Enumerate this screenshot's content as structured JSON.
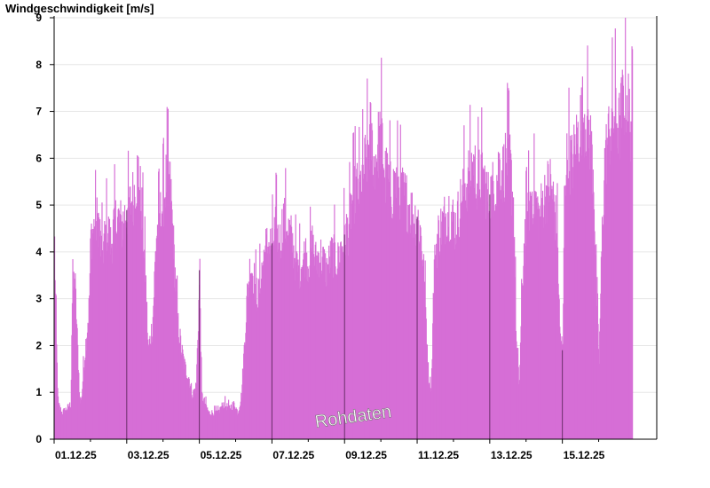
{
  "colors": {
    "bar_fill": "#d66ed6",
    "axis": "#000000",
    "grid": "#e6e6e6",
    "day_marker": "#6a2f6a"
  },
  "watermark": "Rohdaten",
  "chart_data": {
    "type": "bar",
    "title": "Windgeschwindigkeit [m/s]",
    "xlabel": "",
    "ylabel": "",
    "ylim": [
      0,
      9
    ],
    "y_ticks": [
      0,
      1,
      2,
      3,
      4,
      5,
      6,
      7,
      8,
      9
    ],
    "x_range_days": [
      0,
      16.6
    ],
    "x_ticks": [
      {
        "label": "01.12.25",
        "day": 0
      },
      {
        "label": "03.12.25",
        "day": 2
      },
      {
        "label": "05.12.25",
        "day": 4
      },
      {
        "label": "07.12.25",
        "day": 6
      },
      {
        "label": "09.12.25",
        "day": 8
      },
      {
        "label": "11.12.25",
        "day": 10
      },
      {
        "label": "13.12.25",
        "day": 12
      },
      {
        "label": "15.12.25",
        "day": 14
      }
    ],
    "grid": true,
    "series": [
      {
        "values_description": "hourly wind speed envelope (day, m/s)",
        "envelope": [
          [
            0.0,
            4.4
          ],
          [
            0.05,
            2.2
          ],
          [
            0.1,
            0.8
          ],
          [
            0.2,
            0.6
          ],
          [
            0.35,
            0.7
          ],
          [
            0.45,
            0.8
          ],
          [
            0.48,
            3.0
          ],
          [
            0.55,
            3.8
          ],
          [
            0.62,
            2.4
          ],
          [
            0.7,
            0.8
          ],
          [
            0.75,
            1.0
          ],
          [
            0.8,
            1.6
          ],
          [
            0.95,
            3.0
          ],
          [
            1.0,
            4.6
          ],
          [
            1.1,
            4.8
          ],
          [
            1.2,
            5.0
          ],
          [
            1.3,
            4.2
          ],
          [
            1.45,
            4.8
          ],
          [
            1.55,
            4.4
          ],
          [
            1.65,
            4.9
          ],
          [
            1.75,
            5.0
          ],
          [
            1.85,
            4.8
          ],
          [
            1.95,
            5.1
          ],
          [
            2.05,
            5.2
          ],
          [
            2.2,
            5.6
          ],
          [
            2.3,
            6.1
          ],
          [
            2.4,
            5.2
          ],
          [
            2.5,
            3.8
          ],
          [
            2.58,
            2.0
          ],
          [
            2.7,
            2.6
          ],
          [
            2.8,
            4.6
          ],
          [
            2.9,
            5.0
          ],
          [
            3.0,
            5.4
          ],
          [
            3.1,
            6.0
          ],
          [
            3.2,
            5.6
          ],
          [
            3.3,
            4.0
          ],
          [
            3.4,
            2.6
          ],
          [
            3.5,
            2.0
          ],
          [
            3.6,
            1.6
          ],
          [
            3.7,
            1.4
          ],
          [
            3.8,
            1.0
          ],
          [
            3.9,
            1.2
          ],
          [
            4.0,
            3.8
          ],
          [
            4.05,
            1.0
          ],
          [
            4.15,
            0.8
          ],
          [
            4.25,
            0.6
          ],
          [
            4.35,
            0.6
          ],
          [
            4.5,
            0.6
          ],
          [
            4.65,
            0.8
          ],
          [
            4.8,
            0.7
          ],
          [
            4.95,
            0.8
          ],
          [
            5.05,
            0.6
          ],
          [
            5.15,
            1.0
          ],
          [
            5.22,
            2.0
          ],
          [
            5.3,
            3.2
          ],
          [
            5.4,
            4.0
          ],
          [
            5.5,
            3.6
          ],
          [
            5.6,
            3.2
          ],
          [
            5.7,
            3.8
          ],
          [
            5.8,
            4.3
          ],
          [
            5.9,
            4.4
          ],
          [
            6.0,
            4.4
          ],
          [
            6.1,
            4.8
          ],
          [
            6.2,
            4.4
          ],
          [
            6.3,
            5.0
          ],
          [
            6.4,
            4.8
          ],
          [
            6.5,
            4.6
          ],
          [
            6.6,
            4.2
          ],
          [
            6.7,
            3.8
          ],
          [
            6.8,
            4.0
          ],
          [
            6.9,
            4.2
          ],
          [
            7.0,
            4.0
          ],
          [
            7.1,
            4.4
          ],
          [
            7.2,
            4.0
          ],
          [
            7.3,
            4.2
          ],
          [
            7.4,
            4.0
          ],
          [
            7.5,
            3.8
          ],
          [
            7.6,
            4.1
          ],
          [
            7.7,
            4.2
          ],
          [
            7.8,
            4.0
          ],
          [
            7.9,
            4.4
          ],
          [
            8.0,
            4.6
          ],
          [
            8.1,
            4.8
          ],
          [
            8.2,
            5.4
          ],
          [
            8.3,
            5.7
          ],
          [
            8.4,
            5.6
          ],
          [
            8.5,
            6.0
          ],
          [
            8.6,
            6.4
          ],
          [
            8.7,
            6.9
          ],
          [
            8.8,
            6.2
          ],
          [
            8.9,
            6.6
          ],
          [
            9.0,
            6.9
          ],
          [
            9.1,
            6.0
          ],
          [
            9.2,
            5.8
          ],
          [
            9.3,
            5.6
          ],
          [
            9.4,
            5.8
          ],
          [
            9.5,
            5.7
          ],
          [
            9.6,
            5.5
          ],
          [
            9.7,
            5.4
          ],
          [
            9.8,
            5.2
          ],
          [
            9.9,
            5.0
          ],
          [
            10.0,
            5.0
          ],
          [
            10.1,
            4.6
          ],
          [
            10.2,
            3.4
          ],
          [
            10.3,
            1.4
          ],
          [
            10.38,
            1.2
          ],
          [
            10.45,
            3.8
          ],
          [
            10.55,
            4.6
          ],
          [
            10.65,
            4.8
          ],
          [
            10.75,
            5.0
          ],
          [
            10.85,
            5.2
          ],
          [
            10.95,
            5.0
          ],
          [
            11.05,
            4.8
          ],
          [
            11.15,
            5.2
          ],
          [
            11.25,
            5.6
          ],
          [
            11.35,
            5.8
          ],
          [
            11.45,
            6.0
          ],
          [
            11.55,
            6.2
          ],
          [
            11.65,
            5.8
          ],
          [
            11.75,
            6.0
          ],
          [
            11.85,
            5.8
          ],
          [
            11.95,
            5.4
          ],
          [
            12.05,
            5.6
          ],
          [
            12.15,
            5.8
          ],
          [
            12.25,
            6.2
          ],
          [
            12.35,
            6.0
          ],
          [
            12.45,
            6.4
          ],
          [
            12.55,
            6.2
          ],
          [
            12.65,
            5.2
          ],
          [
            12.72,
            2.2
          ],
          [
            12.8,
            1.2
          ],
          [
            12.88,
            3.4
          ],
          [
            12.95,
            4.6
          ],
          [
            13.05,
            5.2
          ],
          [
            13.15,
            5.6
          ],
          [
            13.25,
            5.4
          ],
          [
            13.35,
            5.0
          ],
          [
            13.45,
            5.4
          ],
          [
            13.55,
            5.6
          ],
          [
            13.65,
            5.8
          ],
          [
            13.75,
            5.4
          ],
          [
            13.85,
            4.6
          ],
          [
            13.92,
            2.4
          ],
          [
            14.0,
            2.0
          ],
          [
            14.05,
            6.0
          ],
          [
            14.15,
            6.4
          ],
          [
            14.25,
            6.2
          ],
          [
            14.35,
            6.6
          ],
          [
            14.45,
            7.0
          ],
          [
            14.55,
            7.4
          ],
          [
            14.65,
            7.2
          ],
          [
            14.75,
            6.8
          ],
          [
            14.85,
            6.0
          ],
          [
            14.92,
            3.4
          ],
          [
            15.0,
            1.8
          ],
          [
            15.08,
            4.6
          ],
          [
            15.15,
            6.2
          ],
          [
            15.25,
            6.8
          ],
          [
            15.35,
            7.2
          ],
          [
            15.45,
            7.4
          ],
          [
            15.55,
            7.0
          ],
          [
            15.65,
            7.6
          ],
          [
            15.75,
            7.8
          ],
          [
            15.85,
            7.2
          ],
          [
            15.93,
            7.0
          ]
        ]
      }
    ]
  }
}
